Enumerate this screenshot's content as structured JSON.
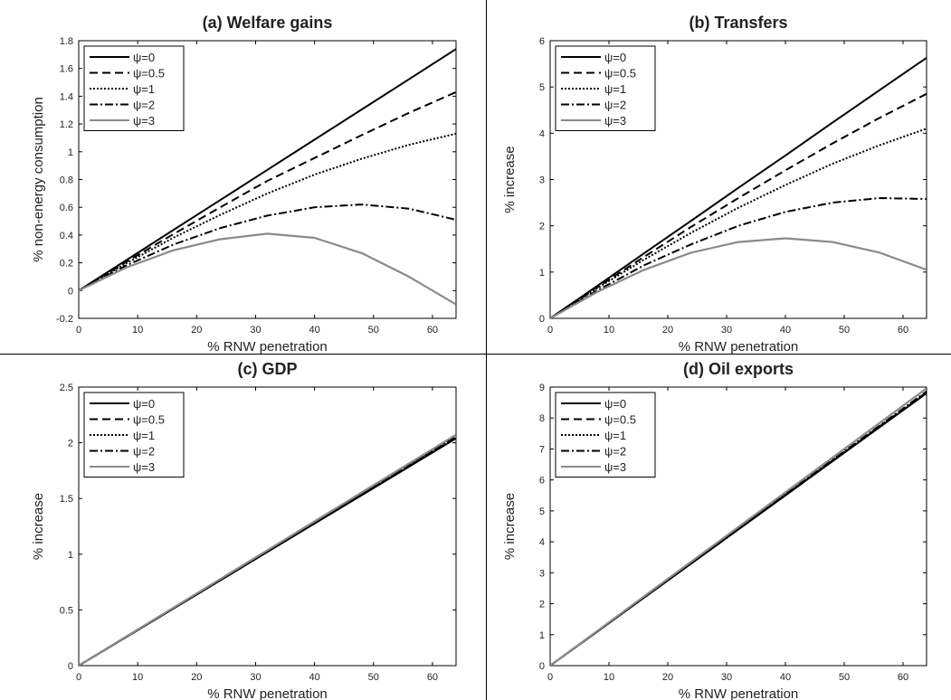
{
  "figure": {
    "panel_dividers": true
  },
  "chart_data": [
    {
      "type": "line",
      "title": "(a) Welfare gains",
      "xlabel": "% RNW penetration",
      "ylabel": "% non-energy consumption",
      "xlim": [
        0,
        64
      ],
      "ylim": [
        -0.2,
        1.8
      ],
      "xticks": [
        0,
        10,
        20,
        30,
        40,
        50,
        60
      ],
      "yticks": [
        -0.2,
        0,
        0.2,
        0.4,
        0.6,
        0.8,
        1,
        1.2,
        1.4,
        1.6,
        1.8
      ],
      "legend_position": "top-left",
      "grid": false,
      "x": [
        0,
        8,
        16,
        24,
        32,
        40,
        48,
        56,
        64
      ],
      "series": [
        {
          "name": "ψ=0",
          "style": "solid",
          "color": "#000000",
          "values": [
            0,
            0.217,
            0.435,
            0.652,
            0.87,
            1.087,
            1.305,
            1.522,
            1.74
          ]
        },
        {
          "name": "ψ=0.5",
          "style": "dashed",
          "color": "#000000",
          "values": [
            0,
            0.205,
            0.405,
            0.6,
            0.79,
            0.955,
            1.12,
            1.28,
            1.43
          ]
        },
        {
          "name": "ψ=1",
          "style": "dotted",
          "color": "#000000",
          "values": [
            0,
            0.195,
            0.38,
            0.545,
            0.7,
            0.835,
            0.95,
            1.05,
            1.13
          ]
        },
        {
          "name": "ψ=2",
          "style": "dashdot",
          "color": "#000000",
          "values": [
            0,
            0.18,
            0.33,
            0.45,
            0.54,
            0.6,
            0.62,
            0.59,
            0.51
          ]
        },
        {
          "name": "ψ=3",
          "style": "solid",
          "color": "#8a8a8a",
          "values": [
            0,
            0.165,
            0.29,
            0.37,
            0.41,
            0.38,
            0.27,
            0.1,
            -0.1
          ]
        }
      ]
    },
    {
      "type": "line",
      "title": "(b) Transfers",
      "xlabel": "% RNW penetration",
      "ylabel": "% increase",
      "xlim": [
        0,
        64
      ],
      "ylim": [
        0,
        6
      ],
      "xticks": [
        0,
        10,
        20,
        30,
        40,
        50,
        60
      ],
      "yticks": [
        0,
        1,
        2,
        3,
        4,
        5,
        6
      ],
      "legend_position": "top-left",
      "grid": false,
      "x": [
        0,
        8,
        16,
        24,
        32,
        40,
        48,
        56,
        64
      ],
      "series": [
        {
          "name": "ψ=0",
          "style": "solid",
          "color": "#000000",
          "values": [
            0,
            0.7,
            1.41,
            2.11,
            2.82,
            3.52,
            4.23,
            4.93,
            5.63
          ]
        },
        {
          "name": "ψ=0.5",
          "style": "dashed",
          "color": "#000000",
          "values": [
            0,
            0.67,
            1.33,
            1.98,
            2.6,
            3.2,
            3.78,
            4.33,
            4.85
          ]
        },
        {
          "name": "ψ=1",
          "style": "dotted",
          "color": "#000000",
          "values": [
            0,
            0.65,
            1.27,
            1.85,
            2.39,
            2.88,
            3.34,
            3.74,
            4.1
          ]
        },
        {
          "name": "ψ=2",
          "style": "dashdot",
          "color": "#000000",
          "values": [
            0,
            0.6,
            1.15,
            1.6,
            2.0,
            2.3,
            2.5,
            2.6,
            2.58
          ]
        },
        {
          "name": "ψ=3",
          "style": "solid",
          "color": "#8a8a8a",
          "values": [
            0,
            0.57,
            1.05,
            1.42,
            1.65,
            1.73,
            1.65,
            1.42,
            1.05
          ]
        }
      ]
    },
    {
      "type": "line",
      "title": "(c) GDP",
      "xlabel": "% RNW penetration",
      "ylabel": "% increase",
      "xlim": [
        0,
        64
      ],
      "ylim": [
        0,
        2.5
      ],
      "xticks": [
        0,
        10,
        20,
        30,
        40,
        50,
        60
      ],
      "yticks": [
        0,
        0.5,
        1,
        1.5,
        2,
        2.5
      ],
      "legend_position": "top-left",
      "grid": false,
      "x": [
        0,
        8,
        16,
        24,
        32,
        40,
        48,
        56,
        64
      ],
      "series": [
        {
          "name": "ψ=0",
          "style": "solid",
          "color": "#000000",
          "values": [
            0,
            0.255,
            0.51,
            0.765,
            1.02,
            1.275,
            1.53,
            1.785,
            2.04
          ]
        },
        {
          "name": "ψ=0.5",
          "style": "dashed",
          "color": "#000000",
          "values": [
            0,
            0.256,
            0.512,
            0.768,
            1.024,
            1.28,
            1.536,
            1.792,
            2.048
          ]
        },
        {
          "name": "ψ=1",
          "style": "dotted",
          "color": "#000000",
          "values": [
            0,
            0.257,
            0.514,
            0.771,
            1.028,
            1.285,
            1.542,
            1.799,
            2.056
          ]
        },
        {
          "name": "ψ=2",
          "style": "dashdot",
          "color": "#000000",
          "values": [
            0,
            0.258,
            0.516,
            0.774,
            1.032,
            1.29,
            1.548,
            1.806,
            2.064
          ]
        },
        {
          "name": "ψ=3",
          "style": "solid",
          "color": "#8a8a8a",
          "values": [
            0,
            0.259,
            0.518,
            0.777,
            1.036,
            1.295,
            1.554,
            1.813,
            2.072
          ]
        }
      ]
    },
    {
      "type": "line",
      "title": "(d) Oil exports",
      "xlabel": "% RNW penetration",
      "ylabel": "% increase",
      "xlim": [
        0,
        64
      ],
      "ylim": [
        0,
        9
      ],
      "xticks": [
        0,
        10,
        20,
        30,
        40,
        50,
        60
      ],
      "yticks": [
        0,
        1,
        2,
        3,
        4,
        5,
        6,
        7,
        8,
        9
      ],
      "legend_position": "top-left",
      "grid": false,
      "x": [
        0,
        8,
        16,
        24,
        32,
        40,
        48,
        56,
        64
      ],
      "series": [
        {
          "name": "ψ=0",
          "style": "solid",
          "color": "#000000",
          "values": [
            0,
            1.1,
            2.2,
            3.3,
            4.4,
            5.5,
            6.6,
            7.7,
            8.8
          ]
        },
        {
          "name": "ψ=0.5",
          "style": "dashed",
          "color": "#000000",
          "values": [
            0,
            1.103,
            2.205,
            3.308,
            4.41,
            5.513,
            6.615,
            7.718,
            8.82
          ]
        },
        {
          "name": "ψ=1",
          "style": "dotted",
          "color": "#000000",
          "values": [
            0,
            1.105,
            2.21,
            3.315,
            4.42,
            5.525,
            6.63,
            7.735,
            8.84
          ]
        },
        {
          "name": "ψ=2",
          "style": "dashdot",
          "color": "#000000",
          "values": [
            0,
            1.108,
            2.215,
            3.323,
            4.43,
            5.538,
            6.645,
            7.753,
            8.86
          ]
        },
        {
          "name": "ψ=3",
          "style": "solid",
          "color": "#8a8a8a",
          "values": [
            0,
            1.12,
            2.24,
            3.36,
            4.48,
            5.6,
            6.72,
            7.84,
            8.96
          ]
        }
      ]
    }
  ]
}
